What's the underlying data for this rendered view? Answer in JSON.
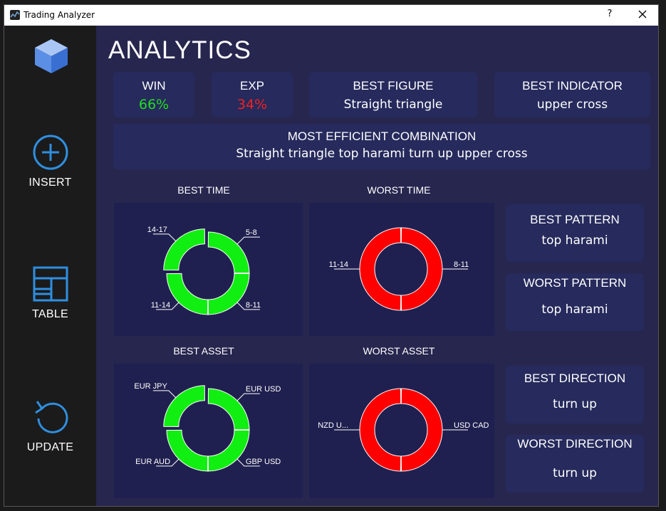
{
  "window": {
    "title": "Trading Analyzer",
    "help_label": "?",
    "icons": {
      "app": "chart-app-icon",
      "close": "close-icon"
    }
  },
  "sidebar": {
    "logo_icon": "cube-logo-icon",
    "items": [
      {
        "label": "INSERT",
        "icon": "plus-circle-icon"
      },
      {
        "label": "TABLE",
        "icon": "table-icon"
      },
      {
        "label": "UPDATE",
        "icon": "refresh-icon"
      }
    ],
    "accent_color": "#2e8fe0"
  },
  "main": {
    "title": "ANALYTICS",
    "stats": {
      "win": {
        "label": "WIN",
        "value": "66%",
        "color": "#22dd22"
      },
      "exp": {
        "label": "EXP",
        "value": "34%",
        "color": "#ee2222"
      },
      "best_figure": {
        "label": "BEST FIGURE",
        "value": "Straight triangle"
      },
      "best_indicator": {
        "label": "BEST INDICATOR",
        "value": "upper cross"
      },
      "combination": {
        "label": "MOST EFFICIENT COMBINATION",
        "value": "Straight triangle top harami turn up upper cross"
      }
    },
    "side_cards": {
      "best_pattern": {
        "label": "BEST PATTERN",
        "value": "top harami"
      },
      "worst_pattern": {
        "label": "WORST PATTERN",
        "value": "top harami"
      },
      "best_direction": {
        "label": "BEST DIRECTION",
        "value": "turn up"
      },
      "worst_direction": {
        "label": "WORST DIRECTION",
        "value": "turn up"
      }
    },
    "section_labels": {
      "best_time": "BEST TIME",
      "worst_time": "WORST TIME",
      "best_asset": "BEST ASSET",
      "worst_asset": "WORST ASSET"
    }
  },
  "chart_data": [
    {
      "type": "pie",
      "title": "BEST TIME",
      "categories": [
        "5-8",
        "8-11",
        "11-14",
        "14-17"
      ],
      "values": [
        1,
        1,
        1,
        1
      ],
      "color": "#11ee11"
    },
    {
      "type": "pie",
      "title": "WORST TIME",
      "categories": [
        "8-11",
        "11-14"
      ],
      "values": [
        1,
        1
      ],
      "color": "#ff0000"
    },
    {
      "type": "pie",
      "title": "BEST ASSET",
      "categories": [
        "EUR USD",
        "GBP USD",
        "EUR AUD",
        "EUR JPY"
      ],
      "values": [
        1,
        1,
        1,
        1
      ],
      "color": "#11ee11"
    },
    {
      "type": "pie",
      "title": "WORST ASSET",
      "categories": [
        "USD CAD",
        "NZD U..."
      ],
      "values": [
        1,
        1
      ],
      "color": "#ff0000"
    }
  ]
}
